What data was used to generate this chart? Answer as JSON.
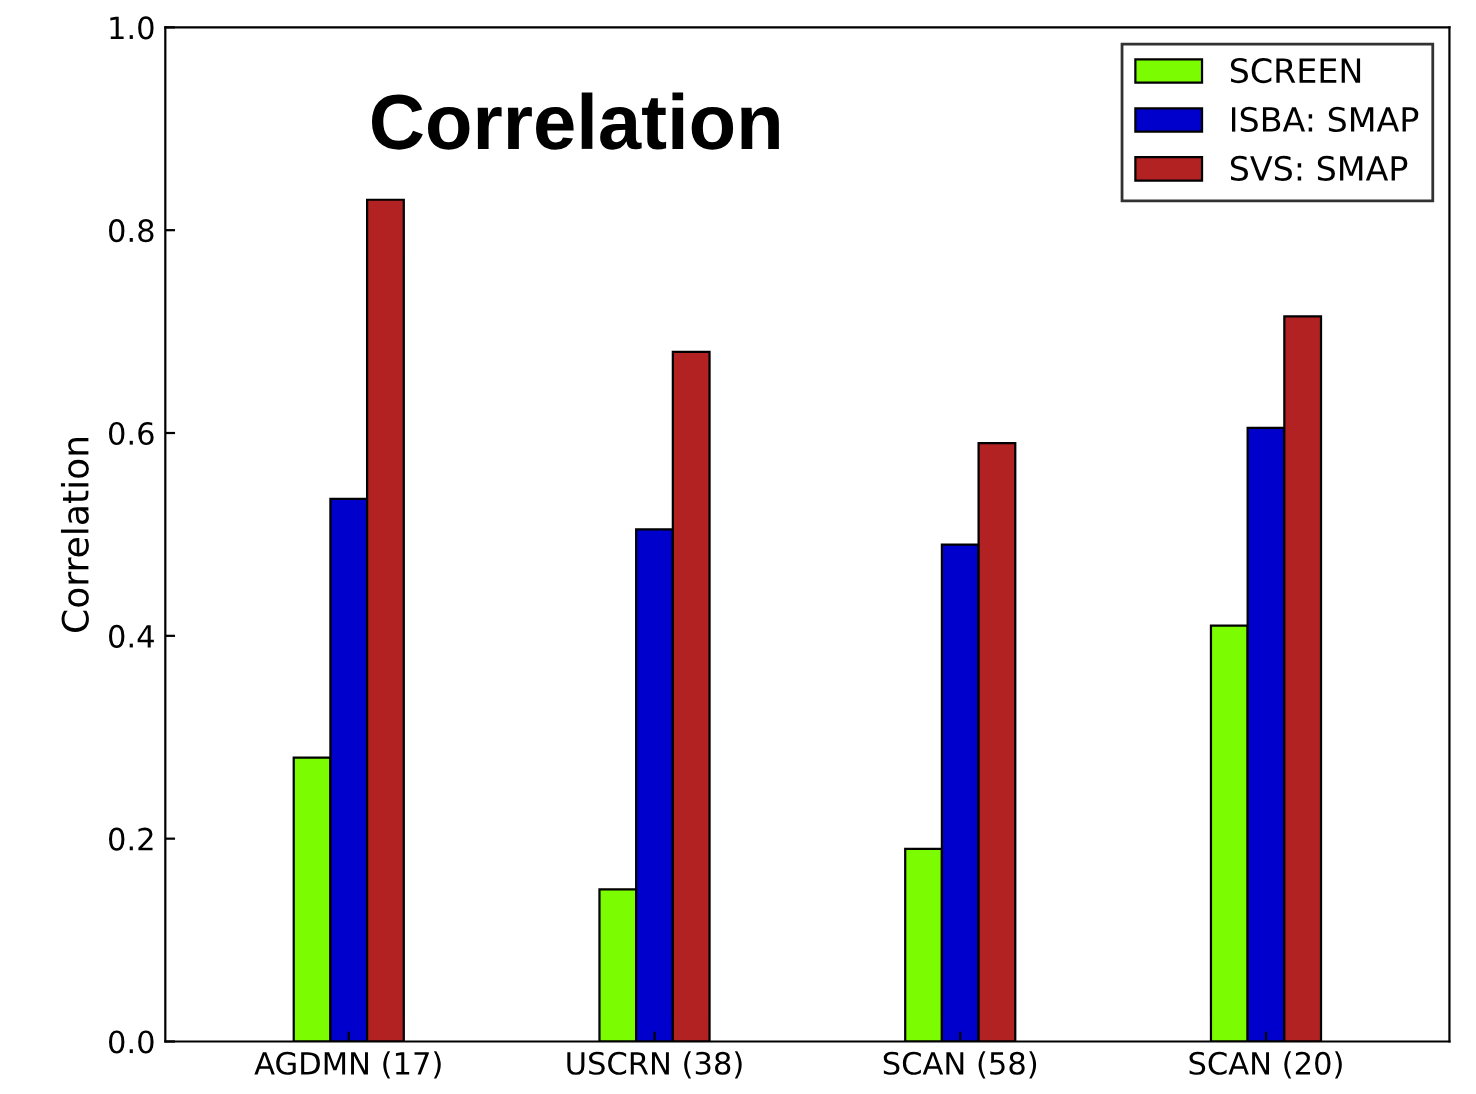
{
  "chart_data": {
    "type": "bar",
    "title": "Correlation",
    "ylabel": "Correlation",
    "categories": [
      "AGDMN (17)",
      "USCRN (38)",
      "SCAN (58)",
      "SCAN (20)"
    ],
    "series": [
      {
        "name": "SCREEN",
        "color": "#7cfc00",
        "values": [
          0.28,
          0.15,
          0.19,
          0.41
        ]
      },
      {
        "name": "ISBA: SMAP",
        "color": "#0000cd",
        "values": [
          0.535,
          0.505,
          0.49,
          0.605
        ]
      },
      {
        "name": "SVS: SMAP",
        "color": "#b22222",
        "values": [
          0.83,
          0.68,
          0.59,
          0.715
        ]
      }
    ],
    "ylim": [
      0,
      1
    ],
    "yticks": [
      {
        "value": 0,
        "label": "0.0"
      },
      {
        "value": 0.2,
        "label": "0.2"
      },
      {
        "value": 0.4,
        "label": "0.4"
      },
      {
        "value": 0.6,
        "label": "0.6"
      },
      {
        "value": 0.8,
        "label": "0.8"
      },
      {
        "value": 1,
        "label": "1.0"
      }
    ],
    "grid": false,
    "legend": "top right"
  }
}
